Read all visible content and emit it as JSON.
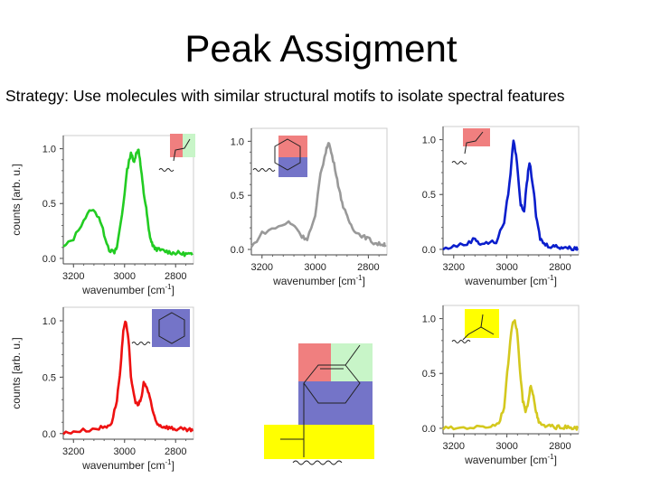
{
  "title": "Peak Assigment",
  "subtitle": "Strategy: Use molecules with similar structural motifs to isolate spectral features",
  "colors": {
    "red": "#f07f7f",
    "green": "#c8f5c8",
    "blue": "#7474c8",
    "yellow": "#ffff00"
  },
  "chart_data": [
    {
      "type": "line",
      "name_hint": "green spectrum",
      "xlabel": "wavenumber [cm",
      "xlabel_sup": "-1",
      "xlabel_close": "]",
      "ylabel": "counts [arb. u.]",
      "xlim": [
        3240,
        2730
      ],
      "ylim": [
        -0.05,
        1.12
      ],
      "xticks": [
        "3200",
        "3000",
        "2800"
      ],
      "yticks": [
        "0.0",
        "0.5",
        "1.0"
      ],
      "color": "#22cc22",
      "x": [
        3240,
        3200,
        3160,
        3130,
        3100,
        3080,
        3060,
        3040,
        3030,
        3010,
        2990,
        2975,
        2965,
        2955,
        2945,
        2935,
        2925,
        2915,
        2905,
        2895,
        2885,
        2870,
        2850,
        2830,
        2810,
        2790,
        2770,
        2750,
        2735
      ],
      "y": [
        0.1,
        0.18,
        0.35,
        0.45,
        0.38,
        0.22,
        0.08,
        0.05,
        0.1,
        0.4,
        0.8,
        0.97,
        0.88,
        0.95,
        1.0,
        0.8,
        0.6,
        0.45,
        0.25,
        0.15,
        0.1,
        0.08,
        0.07,
        0.06,
        0.05,
        0.05,
        0.04,
        0.04,
        0.03
      ],
      "motif": [
        "red",
        "green"
      ]
    },
    {
      "type": "line",
      "name_hint": "gray spectrum",
      "xlabel": "wavenumber [cm",
      "xlabel_sup": "-1",
      "xlabel_close": "]",
      "ylabel": "",
      "xlim": [
        3240,
        2730
      ],
      "ylim": [
        -0.05,
        1.12
      ],
      "xticks": [
        "3200",
        "3000",
        "2800"
      ],
      "yticks": [
        "0.0",
        "0.5",
        "1.0"
      ],
      "color": "#999999",
      "x": [
        3240,
        3200,
        3150,
        3100,
        3070,
        3050,
        3030,
        3000,
        2980,
        2960,
        2950,
        2940,
        2925,
        2910,
        2895,
        2880,
        2860,
        2840,
        2820,
        2800,
        2780,
        2760,
        2740,
        2735
      ],
      "y": [
        0.02,
        0.15,
        0.2,
        0.25,
        0.2,
        0.12,
        0.1,
        0.3,
        0.7,
        0.9,
        1.0,
        0.9,
        0.75,
        0.55,
        0.4,
        0.3,
        0.2,
        0.15,
        0.12,
        0.1,
        0.06,
        0.05,
        0.05,
        0.04
      ],
      "motif": [
        "red",
        "blue"
      ]
    },
    {
      "type": "line",
      "name_hint": "blue spectrum",
      "xlabel": "wavenumber [cm",
      "xlabel_sup": "-1",
      "xlabel_close": "]",
      "ylabel": "",
      "xlim": [
        3240,
        2730
      ],
      "ylim": [
        -0.05,
        1.12
      ],
      "xticks": [
        "3200",
        "3000",
        "2800"
      ],
      "yticks": [
        "0.0",
        "0.5",
        "1.0"
      ],
      "color": "#0a1ecc",
      "x": [
        3240,
        3200,
        3150,
        3120,
        3100,
        3070,
        3040,
        3010,
        2990,
        2975,
        2962,
        2948,
        2935,
        2925,
        2915,
        2900,
        2890,
        2875,
        2860,
        2840,
        2820,
        2800,
        2780,
        2760,
        2740,
        2735
      ],
      "y": [
        0.0,
        0.03,
        0.05,
        0.1,
        0.05,
        0.06,
        0.07,
        0.25,
        0.6,
        1.0,
        0.8,
        0.4,
        0.35,
        0.6,
        0.8,
        0.55,
        0.3,
        0.1,
        0.05,
        0.03,
        0.03,
        0.02,
        0.02,
        0.01,
        0.01,
        0.01
      ],
      "motif": [
        "red"
      ]
    },
    {
      "type": "line",
      "name_hint": "red spectrum",
      "xlabel": "wavenumber [cm",
      "xlabel_sup": "-1",
      "xlabel_close": "]",
      "ylabel": "counts [arb. u.]",
      "xlim": [
        3240,
        2730
      ],
      "ylim": [
        -0.05,
        1.12
      ],
      "xticks": [
        "3200",
        "3000",
        "2800"
      ],
      "yticks": [
        "0.0",
        "0.5",
        "1.0"
      ],
      "color": "#ee1111",
      "x": [
        3240,
        3200,
        3150,
        3100,
        3070,
        3050,
        3030,
        3015,
        3005,
        2995,
        2985,
        2975,
        2960,
        2948,
        2935,
        2925,
        2915,
        2905,
        2890,
        2875,
        2860,
        2840,
        2820,
        2800,
        2780,
        2760,
        2740,
        2735
      ],
      "y": [
        0.0,
        0.02,
        0.03,
        0.05,
        0.06,
        0.1,
        0.3,
        0.6,
        0.9,
        1.0,
        0.85,
        0.5,
        0.3,
        0.25,
        0.3,
        0.45,
        0.42,
        0.35,
        0.2,
        0.1,
        0.07,
        0.06,
        0.05,
        0.04,
        0.04,
        0.03,
        0.03,
        0.02
      ],
      "motif": [
        "blue"
      ]
    },
    {
      "type": "line",
      "name_hint": "yellow spectrum",
      "xlabel": "wavenumber [cm",
      "xlabel_sup": "-1",
      "xlabel_close": "]",
      "ylabel": "",
      "xlim": [
        3240,
        2730
      ],
      "ylim": [
        -0.05,
        1.12
      ],
      "xticks": [
        "3200",
        "3000",
        "2800"
      ],
      "yticks": [
        "0.0",
        "0.5",
        "1.0"
      ],
      "color": "#d4c81e",
      "x": [
        3240,
        3200,
        3150,
        3100,
        3060,
        3030,
        3010,
        2995,
        2980,
        2970,
        2960,
        2950,
        2940,
        2930,
        2920,
        2910,
        2900,
        2890,
        2880,
        2860,
        2840,
        2820,
        2800,
        2780,
        2760,
        2740,
        2735
      ],
      "y": [
        0.0,
        0.0,
        0.01,
        0.01,
        0.02,
        0.05,
        0.2,
        0.6,
        0.95,
        1.0,
        0.85,
        0.5,
        0.25,
        0.15,
        0.22,
        0.4,
        0.3,
        0.15,
        0.05,
        0.02,
        0.02,
        0.01,
        0.01,
        0.01,
        0.0,
        0.0,
        0.0
      ],
      "motif": [
        "yellow"
      ]
    }
  ]
}
